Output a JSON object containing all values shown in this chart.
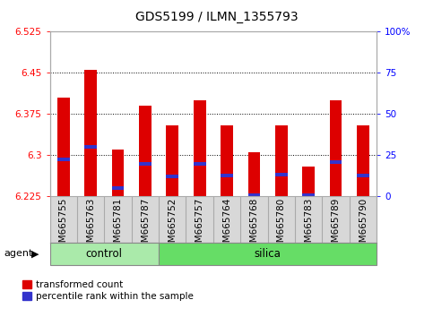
{
  "title": "GDS5199 / ILMN_1355793",
  "samples": [
    "GSM665755",
    "GSM665763",
    "GSM665781",
    "GSM665787",
    "GSM665752",
    "GSM665757",
    "GSM665764",
    "GSM665768",
    "GSM665780",
    "GSM665783",
    "GSM665789",
    "GSM665790"
  ],
  "groups": [
    "control",
    "control",
    "control",
    "control",
    "silica",
    "silica",
    "silica",
    "silica",
    "silica",
    "silica",
    "silica",
    "silica"
  ],
  "bar_heights": [
    6.405,
    6.455,
    6.31,
    6.39,
    6.355,
    6.4,
    6.355,
    6.305,
    6.355,
    6.28,
    6.4,
    6.355
  ],
  "blue_positions": [
    6.293,
    6.315,
    6.24,
    6.285,
    6.262,
    6.285,
    6.263,
    6.228,
    6.265,
    6.228,
    6.287,
    6.263
  ],
  "ymin": 6.225,
  "ymax": 6.525,
  "yticks": [
    6.225,
    6.3,
    6.375,
    6.45,
    6.525
  ],
  "y2ticks": [
    0,
    25,
    50,
    75,
    100
  ],
  "y2labels": [
    "0",
    "25",
    "50",
    "75",
    "100%"
  ],
  "bar_color": "#dd0000",
  "blue_color": "#3333cc",
  "bar_width": 0.45,
  "background_plot": "#ffffff",
  "tick_bg_color": "#d8d8d8",
  "control_color": "#aaeaaa",
  "silica_color": "#66dd66",
  "agent_label": "agent",
  "legend_red": "transformed count",
  "legend_blue": "percentile rank within the sample",
  "title_fontsize": 10,
  "tick_fontsize": 7.5,
  "label_fontsize": 8.5
}
